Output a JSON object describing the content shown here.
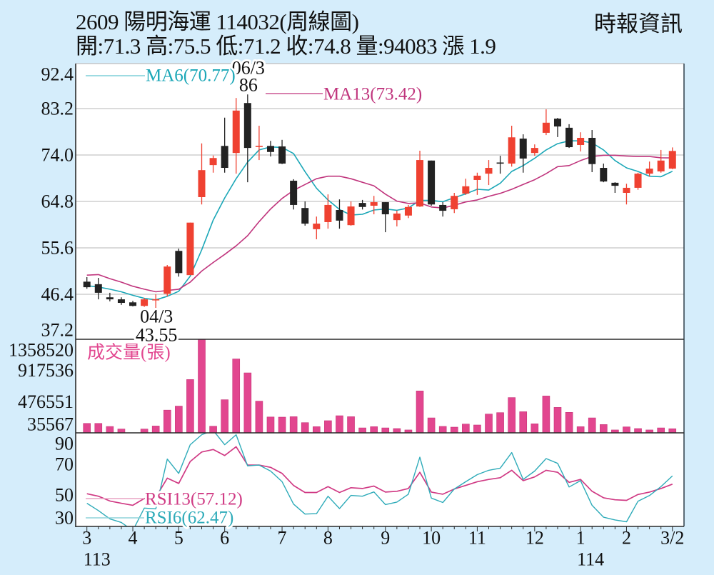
{
  "header": {
    "title": "2609  陽明海運 114032(周線圖)",
    "ohlc_line": "開:71.3 高:75.5 低:71.2 收:74.8 量:94083 漲 1.9",
    "source": "時報資訊"
  },
  "colors": {
    "background": "#d5edfb",
    "plot_background": "#ffffff",
    "up_candle": "#ef4131",
    "down_candle": "#222222",
    "ma6": "#1ba7b7",
    "ma13": "#c0357d",
    "volume": "#e2468f",
    "volume_edge": "#c73478",
    "rsi6": "#2eabb9",
    "rsi13": "#d03a84",
    "legend_line_ma6": "#7fcfd8",
    "legend_line_ma13": "#c0357d",
    "legend_line_rsi13": "#e9a3c4",
    "legend_line_rsi6": "#8fd3da",
    "grid": "#cfcfcf",
    "axis": "#2a2a2a",
    "text": "#111111"
  },
  "chart_data": [
    {
      "type": "candlestick",
      "title": "2609 陽明海運 114032(周線圖)",
      "xlabel": "",
      "ylabel": "",
      "ylim": [
        37.2,
        92.4
      ],
      "yticks": [
        "92.4",
        "83.2",
        "74.0",
        "64.8",
        "55.6",
        "46.4",
        "37.2"
      ],
      "grid": true,
      "x_month_ticks": [
        {
          "index": 0,
          "label": "3"
        },
        {
          "index": 4,
          "label": "4"
        },
        {
          "index": 8,
          "label": "5"
        },
        {
          "index": 12,
          "label": "6"
        },
        {
          "index": 17,
          "label": "7"
        },
        {
          "index": 21,
          "label": "8"
        },
        {
          "index": 26,
          "label": "9"
        },
        {
          "index": 30,
          "label": "10"
        },
        {
          "index": 34,
          "label": "11"
        },
        {
          "index": 39,
          "label": "12"
        },
        {
          "index": 43,
          "label": "1"
        },
        {
          "index": 47,
          "label": "2"
        },
        {
          "index": 51,
          "label": "3/2"
        }
      ],
      "x_year_ticks": [
        {
          "index": 0,
          "label": "113"
        },
        {
          "index": 43,
          "label": "114"
        }
      ],
      "ohlc_fields": [
        "open",
        "high",
        "low",
        "close"
      ],
      "ohlc": [
        [
          48.9,
          49.8,
          47.5,
          47.8
        ],
        [
          48.4,
          49.65,
          45.4,
          46.7
        ],
        [
          45.8,
          46.7,
          45.0,
          45.4
        ],
        [
          45.4,
          45.8,
          44.3,
          44.7
        ],
        [
          44.8,
          45.1,
          44.0,
          44.1
        ],
        [
          44.1,
          45.7,
          43.9,
          45.4
        ],
        [
          45.2,
          46.4,
          43.55,
          45.3
        ],
        [
          46.5,
          52.2,
          46.0,
          51.9
        ],
        [
          55.0,
          55.45,
          49.9,
          50.6
        ],
        [
          50.2,
          60.6,
          50.2,
          60.6
        ],
        [
          65.65,
          76.3,
          64.2,
          71.0
        ],
        [
          72.0,
          73.9,
          70.5,
          73.4
        ],
        [
          75.8,
          81.4,
          70.5,
          71.45
        ],
        [
          74.4,
          85.3,
          70.3,
          82.8
        ],
        [
          84.3,
          86.0,
          68.6,
          75.4
        ],
        [
          75.6,
          79.8,
          73.0,
          75.7
        ],
        [
          75.8,
          76.8,
          73.7,
          74.6
        ],
        [
          75.7,
          77.0,
          72.2,
          72.3
        ],
        [
          68.9,
          69.2,
          63.2,
          64.1
        ],
        [
          63.5,
          64.8,
          60.0,
          60.4
        ],
        [
          59.3,
          61.8,
          57.3,
          60.4
        ],
        [
          60.7,
          66.2,
          59.4,
          64.1
        ],
        [
          63.1,
          65.2,
          59.4,
          61.0
        ],
        [
          60.1,
          64.8,
          60.0,
          63.8
        ],
        [
          64.5,
          65.1,
          63.2,
          63.7
        ],
        [
          63.95,
          65.9,
          62.25,
          64.65
        ],
        [
          64.65,
          64.65,
          58.7,
          62.25
        ],
        [
          61.1,
          63.0,
          59.85,
          62.4
        ],
        [
          62.0,
          64.1,
          61.5,
          63.7
        ],
        [
          63.8,
          74.85,
          63.7,
          73.0
        ],
        [
          72.9,
          72.9,
          63.95,
          64.2
        ],
        [
          64.1,
          64.65,
          61.8,
          62.95
        ],
        [
          63.25,
          66.5,
          62.5,
          65.9
        ],
        [
          66.35,
          69.3,
          66.1,
          67.8
        ],
        [
          69.05,
          70.5,
          66.1,
          69.9
        ],
        [
          70.3,
          73.0,
          68.05,
          71.45
        ],
        [
          72.4,
          73.85,
          70.3,
          72.3
        ],
        [
          72.3,
          79.8,
          71.7,
          77.5
        ],
        [
          77.25,
          78.1,
          70.5,
          73.3
        ],
        [
          74.4,
          76.1,
          73.85,
          75.4
        ],
        [
          78.4,
          83.05,
          77.95,
          80.4
        ],
        [
          81.2,
          81.35,
          77.55,
          79.65
        ],
        [
          79.4,
          80.1,
          75.4,
          75.55
        ],
        [
          75.98,
          78.5,
          74.7,
          77.4
        ],
        [
          77.4,
          78.95,
          70.6,
          72.2
        ],
        [
          71.45,
          72.3,
          68.6,
          68.75
        ],
        [
          68.5,
          68.6,
          66.5,
          67.9
        ],
        [
          66.5,
          68.3,
          64.2,
          67.5
        ],
        [
          67.5,
          70.5,
          67.1,
          70.3
        ],
        [
          70.3,
          72.7,
          69.75,
          71.3
        ],
        [
          70.75,
          75.0,
          70.5,
          72.9
        ],
        [
          71.3,
          75.5,
          71.2,
          74.8
        ]
      ],
      "series": [
        {
          "name": "MA6",
          "label": "MA6(70.77)",
          "values": [
            48.1,
            47.85,
            47.4,
            46.9,
            46.2,
            45.6,
            45.3,
            46.0,
            47.0,
            50.0,
            55.2,
            61.1,
            65.5,
            69.3,
            72.6,
            75.0,
            75.6,
            75.5,
            74.3,
            70.7,
            67.4,
            65.1,
            63.2,
            62.1,
            62.25,
            63.1,
            63.3,
            63.05,
            63.5,
            65.0,
            65.0,
            64.75,
            65.55,
            66.3,
            67.2,
            67.05,
            68.4,
            70.75,
            71.9,
            73.35,
            75.0,
            76.25,
            76.8,
            76.8,
            76.4,
            75.0,
            72.9,
            71.45,
            70.75,
            69.8,
            69.7,
            70.77
          ]
        },
        {
          "name": "MA13",
          "label": "MA13(73.42)",
          "values": [
            50.2,
            50.3,
            49.5,
            48.8,
            48.0,
            47.4,
            46.9,
            47.15,
            47.4,
            48.8,
            51.0,
            52.7,
            54.3,
            56.0,
            58.0,
            60.8,
            63.3,
            65.4,
            67.0,
            68.15,
            69.3,
            69.8,
            69.8,
            69.3,
            68.6,
            67.9,
            66.25,
            64.85,
            64.4,
            64.5,
            63.7,
            63.5,
            64.05,
            64.7,
            65.1,
            65.8,
            66.4,
            67.2,
            68.15,
            69.1,
            70.3,
            71.7,
            71.9,
            72.9,
            73.7,
            73.95,
            73.95,
            73.8,
            73.7,
            73.7,
            73.45,
            73.42
          ]
        }
      ],
      "annotations": [
        {
          "index": 14,
          "position": "above",
          "lines": [
            "06/3",
            "86"
          ]
        },
        {
          "index": 6,
          "position": "below",
          "lines": [
            "04/3",
            "43.55"
          ]
        }
      ]
    },
    {
      "type": "bar",
      "title": "成交量(張)",
      "xlabel": "",
      "ylabel": "",
      "ylim": [
        35567,
        1358520
      ],
      "yticks": [
        "1358520",
        "917536",
        "476551",
        "35567"
      ],
      "grid": false,
      "values": [
        169200,
        169200,
        125500,
        89800,
        35000,
        89800,
        132400,
        357000,
        413900,
        789600,
        1358520,
        129500,
        504100,
        1080700,
        883600,
        484100,
        260000,
        257800,
        264400,
        179800,
        122900,
        207500,
        277700,
        264400,
        105700,
        122900,
        105700,
        96400,
        76600,
        628200,
        247200,
        126900,
        116300,
        159900,
        146700,
        301500,
        321300,
        534300,
        334600,
        163900,
        556800,
        395400,
        325300,
        122900,
        247200,
        153300,
        76600,
        120200,
        96400,
        76600,
        105700,
        94083
      ]
    },
    {
      "type": "line",
      "title": "RSI",
      "xlabel": "",
      "ylabel": "",
      "ylim": [
        29.7,
        90.4
      ],
      "yticks": [
        "90",
        "70",
        "50",
        "30"
      ],
      "grid": false,
      "series": [
        {
          "name": "RSI13",
          "label": "RSI13(57.12)",
          "values": [
            50.9,
            49.3,
            46.2,
            44.7,
            43.4,
            47.8,
            48.6,
            61.0,
            57.6,
            71.8,
            78.0,
            79.6,
            75.7,
            81.4,
            69.5,
            69.5,
            68.0,
            64.1,
            56.3,
            51.7,
            51.7,
            55.5,
            51.7,
            54.8,
            54.3,
            55.9,
            52.0,
            52.5,
            54.3,
            64.8,
            52.0,
            50.6,
            54.0,
            56.3,
            58.7,
            60.2,
            61.3,
            66.1,
            59.4,
            61.8,
            66.1,
            64.8,
            58.3,
            60.2,
            52.5,
            48.3,
            47.0,
            46.6,
            50.4,
            52.0,
            54.3,
            57.12
          ]
        },
        {
          "name": "RSI6",
          "label": "RSI6(62.47)",
          "values": [
            44.7,
            40.0,
            34.6,
            32.3,
            27.0,
            41.6,
            41.1,
            73.4,
            64.1,
            82.7,
            89.2,
            92.0,
            82.7,
            89.2,
            69.0,
            69.5,
            65.6,
            58.7,
            44.2,
            37.7,
            38.0,
            49.3,
            41.3,
            49.8,
            49.3,
            52.1,
            43.9,
            45.5,
            50.6,
            74.6,
            48.1,
            45.2,
            54.0,
            58.7,
            63.3,
            66.1,
            67.5,
            77.6,
            60.2,
            65.6,
            73.7,
            70.6,
            55.3,
            59.4,
            43.4,
            35.7,
            33.9,
            32.7,
            46.0,
            49.7,
            55.5,
            62.47
          ]
        }
      ]
    }
  ]
}
